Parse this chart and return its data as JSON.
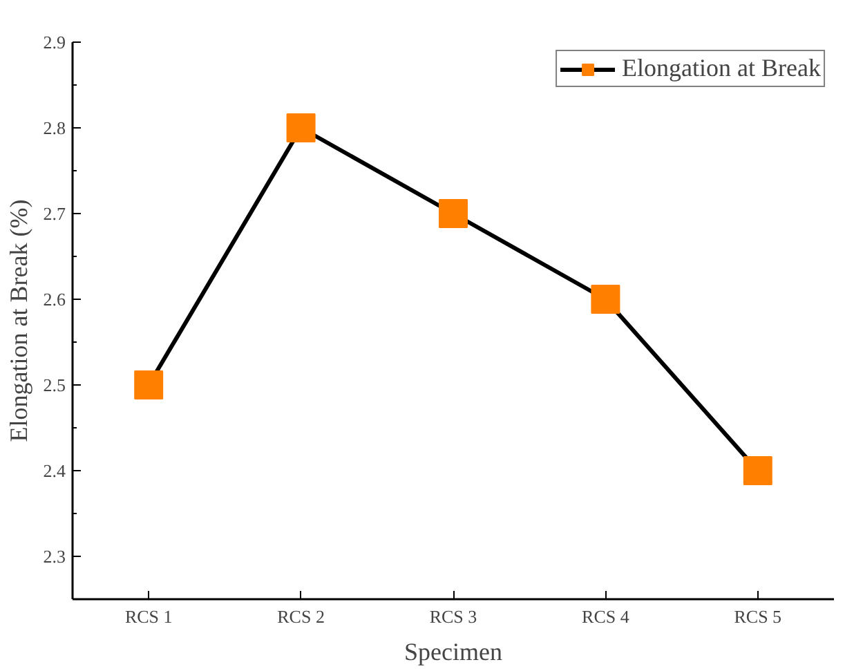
{
  "chart_data": {
    "type": "line",
    "xlabel": "Specimen",
    "ylabel": "Elongation at Break (%)",
    "categories": [
      "RCS 1",
      "RCS 2",
      "RCS 3",
      "RCS 4",
      "RCS 5"
    ],
    "series": [
      {
        "name": "Elongation at Break",
        "color": "#ff8000",
        "values": [
          2.5,
          2.8,
          2.7,
          2.6,
          2.4
        ]
      }
    ],
    "ylim": [
      2.25,
      2.9
    ],
    "yticks": [
      2.3,
      2.4,
      2.5,
      2.6,
      2.7,
      2.8,
      2.9
    ],
    "grid": false,
    "legend": "top right",
    "marker": "square",
    "line_style": "solid"
  }
}
